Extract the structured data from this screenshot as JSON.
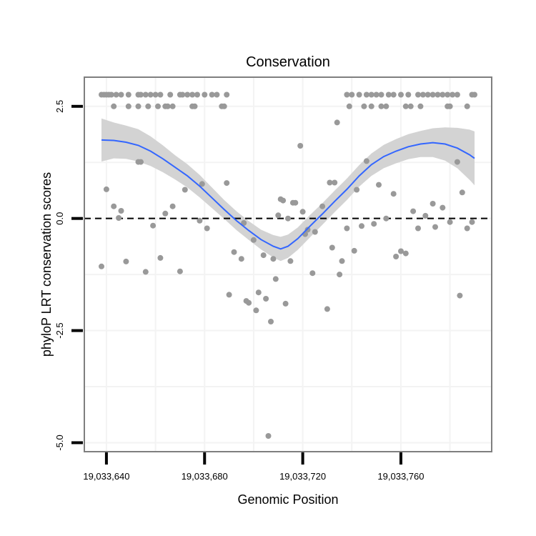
{
  "chart_data": {
    "type": "scatter",
    "title": "Conservation",
    "xlabel": "Genomic Position",
    "ylabel": "phyloP LRT conservation scores",
    "xlim": [
      19033631,
      19033797
    ],
    "ylim": [
      -5.2,
      3.15
    ],
    "x_ticks": [
      19033640,
      19033680,
      19033720,
      19033760
    ],
    "x_tick_labels": [
      "19,033,640",
      "19,033,680",
      "19,033,720",
      "19,033,760"
    ],
    "y_ticks": [
      2.5,
      0,
      -2.5,
      -5
    ],
    "y_tick_labels": [
      "2.5",
      "0.0",
      "-2.5",
      "-5.0"
    ],
    "reference_line": {
      "y": 0,
      "style": "dashed"
    },
    "colors": {
      "points": "#999999",
      "smooth": "#3366ff",
      "band": "#d3d3d3",
      "grid": "#f3f3f3",
      "frame": "#7f7f7f"
    },
    "series": [
      {
        "name": "phyloP scores",
        "points": [
          [
            19033638,
            2.76
          ],
          [
            19033639,
            2.76
          ],
          [
            19033640,
            2.76
          ],
          [
            19033641,
            2.76
          ],
          [
            19033642,
            2.76
          ],
          [
            19033644,
            2.76
          ],
          [
            19033646,
            2.76
          ],
          [
            19033649,
            2.76
          ],
          [
            19033653,
            2.76
          ],
          [
            19033654,
            2.76
          ],
          [
            19033656,
            2.76
          ],
          [
            19033658,
            2.76
          ],
          [
            19033660,
            2.76
          ],
          [
            19033662,
            2.76
          ],
          [
            19033666,
            2.76
          ],
          [
            19033670,
            2.76
          ],
          [
            19033671,
            2.76
          ],
          [
            19033673,
            2.76
          ],
          [
            19033675,
            2.76
          ],
          [
            19033677,
            2.76
          ],
          [
            19033680,
            2.76
          ],
          [
            19033683,
            2.76
          ],
          [
            19033685,
            2.76
          ],
          [
            19033689,
            2.76
          ],
          [
            19033643,
            2.5
          ],
          [
            19033649,
            2.5
          ],
          [
            19033653,
            2.5
          ],
          [
            19033657,
            2.5
          ],
          [
            19033661,
            2.5
          ],
          [
            19033664,
            2.5
          ],
          [
            19033665,
            2.5
          ],
          [
            19033667,
            2.5
          ],
          [
            19033675,
            2.5
          ],
          [
            19033676,
            2.5
          ],
          [
            19033687,
            2.5
          ],
          [
            19033688,
            2.5
          ],
          [
            19033738,
            2.76
          ],
          [
            19033740,
            2.76
          ],
          [
            19033743,
            2.76
          ],
          [
            19033746,
            2.76
          ],
          [
            19033748,
            2.76
          ],
          [
            19033750,
            2.76
          ],
          [
            19033752,
            2.76
          ],
          [
            19033755,
            2.76
          ],
          [
            19033757,
            2.76
          ],
          [
            19033760,
            2.76
          ],
          [
            19033763,
            2.76
          ],
          [
            19033767,
            2.76
          ],
          [
            19033769,
            2.76
          ],
          [
            19033771,
            2.76
          ],
          [
            19033773,
            2.76
          ],
          [
            19033775,
            2.76
          ],
          [
            19033777,
            2.76
          ],
          [
            19033779,
            2.76
          ],
          [
            19033781,
            2.76
          ],
          [
            19033783,
            2.76
          ],
          [
            19033789,
            2.76
          ],
          [
            19033790,
            2.76
          ],
          [
            19033739,
            2.5
          ],
          [
            19033745,
            2.5
          ],
          [
            19033748,
            2.5
          ],
          [
            19033752,
            2.5
          ],
          [
            19033754,
            2.5
          ],
          [
            19033762,
            2.5
          ],
          [
            19033764,
            2.5
          ],
          [
            19033768,
            2.5
          ],
          [
            19033779,
            2.5
          ],
          [
            19033780,
            2.5
          ],
          [
            19033787,
            2.5
          ],
          [
            19033734,
            2.14
          ],
          [
            19033719,
            1.62
          ],
          [
            19033638,
            -1.07
          ],
          [
            19033640,
            0.65
          ],
          [
            19033643,
            0.27
          ],
          [
            19033645,
            0.01
          ],
          [
            19033646,
            0.17
          ],
          [
            19033648,
            -0.96
          ],
          [
            19033653,
            1.26
          ],
          [
            19033654,
            1.26
          ],
          [
            19033656,
            -1.19
          ],
          [
            19033659,
            -0.16
          ],
          [
            19033662,
            -0.88
          ],
          [
            19033664,
            0.11
          ],
          [
            19033667,
            0.27
          ],
          [
            19033670,
            -1.18
          ],
          [
            19033672,
            0.64
          ],
          [
            19033678,
            -0.05
          ],
          [
            19033679,
            0.77
          ],
          [
            19033681,
            -0.22
          ],
          [
            19033689,
            0.79
          ],
          [
            19033690,
            -1.7
          ],
          [
            19033692,
            -0.75
          ],
          [
            19033695,
            -0.9
          ],
          [
            19033696,
            -0.1
          ],
          [
            19033697,
            -1.84
          ],
          [
            19033698,
            -1.88
          ],
          [
            19033700,
            -0.48
          ],
          [
            19033701,
            -2.05
          ],
          [
            19033702,
            -1.65
          ],
          [
            19033704,
            -0.82
          ],
          [
            19033705,
            -1.79
          ],
          [
            19033707,
            -2.3
          ],
          [
            19033708,
            -0.9
          ],
          [
            19033709,
            -1.35
          ],
          [
            19033710,
            0.07
          ],
          [
            19033711,
            0.43
          ],
          [
            19033712,
            0.4
          ],
          [
            19033713,
            -1.9
          ],
          [
            19033714,
            0.0
          ],
          [
            19033715,
            -0.95
          ],
          [
            19033716,
            0.35
          ],
          [
            19033717,
            0.35
          ],
          [
            19033720,
            0.15
          ],
          [
            19033721,
            -0.35
          ],
          [
            19033722,
            -0.25
          ],
          [
            19033724,
            -1.22
          ],
          [
            19033725,
            -0.3
          ],
          [
            19033728,
            0.27
          ],
          [
            19033730,
            -2.02
          ],
          [
            19033731,
            0.8
          ],
          [
            19033732,
            -0.65
          ],
          [
            19033733,
            0.8
          ],
          [
            19033735,
            -1.25
          ],
          [
            19033736,
            -0.95
          ],
          [
            19033738,
            -0.22
          ],
          [
            19033741,
            -0.72
          ],
          [
            19033742,
            0.64
          ],
          [
            19033744,
            -0.17
          ],
          [
            19033746,
            1.28
          ],
          [
            19033749,
            -0.12
          ],
          [
            19033751,
            0.75
          ],
          [
            19033754,
            0.0
          ],
          [
            19033757,
            0.55
          ],
          [
            19033758,
            -0.85
          ],
          [
            19033760,
            -0.73
          ],
          [
            19033762,
            -0.78
          ],
          [
            19033765,
            0.16
          ],
          [
            19033767,
            -0.22
          ],
          [
            19033770,
            0.06
          ],
          [
            19033773,
            0.33
          ],
          [
            19033774,
            -0.19
          ],
          [
            19033777,
            0.24
          ],
          [
            19033780,
            -0.08
          ],
          [
            19033783,
            1.26
          ],
          [
            19033784,
            -1.72
          ],
          [
            19033785,
            0.58
          ],
          [
            19033787,
            -0.22
          ],
          [
            19033789,
            -0.08
          ],
          [
            19033706,
            -4.85
          ]
        ]
      }
    ],
    "smooth": {
      "x": [
        19033638,
        19033643,
        19033648,
        19033653,
        19033658,
        19033663,
        19033668,
        19033673,
        19033678,
        19033683,
        19033688,
        19033693,
        19033698,
        19033703,
        19033708,
        19033711,
        19033714,
        19033718,
        19033723,
        19033728,
        19033733,
        19033738,
        19033743,
        19033748,
        19033753,
        19033758,
        19033763,
        19033768,
        19033773,
        19033778,
        19033783,
        19033788,
        19033790
      ],
      "y": [
        1.75,
        1.74,
        1.7,
        1.63,
        1.5,
        1.33,
        1.14,
        0.95,
        0.72,
        0.46,
        0.2,
        -0.05,
        -0.27,
        -0.47,
        -0.62,
        -0.68,
        -0.62,
        -0.45,
        -0.17,
        0.1,
        0.38,
        0.65,
        0.95,
        1.2,
        1.38,
        1.5,
        1.6,
        1.66,
        1.69,
        1.66,
        1.57,
        1.42,
        1.34
      ],
      "lower": [
        1.27,
        1.34,
        1.33,
        1.27,
        1.17,
        1.03,
        0.87,
        0.69,
        0.47,
        0.23,
        -0.01,
        -0.26,
        -0.48,
        -0.69,
        -0.87,
        -0.95,
        -0.88,
        -0.7,
        -0.42,
        -0.14,
        0.14,
        0.41,
        0.71,
        0.95,
        1.12,
        1.23,
        1.32,
        1.37,
        1.37,
        1.29,
        1.12,
        0.86,
        0.74
      ],
      "upper": [
        2.23,
        2.14,
        2.07,
        1.99,
        1.83,
        1.63,
        1.41,
        1.21,
        0.97,
        0.69,
        0.41,
        0.16,
        -0.06,
        -0.25,
        -0.37,
        -0.41,
        -0.36,
        -0.2,
        0.08,
        0.34,
        0.62,
        0.89,
        1.19,
        1.45,
        1.64,
        1.77,
        1.88,
        1.95,
        2.01,
        2.03,
        2.02,
        1.98,
        1.94
      ]
    }
  }
}
